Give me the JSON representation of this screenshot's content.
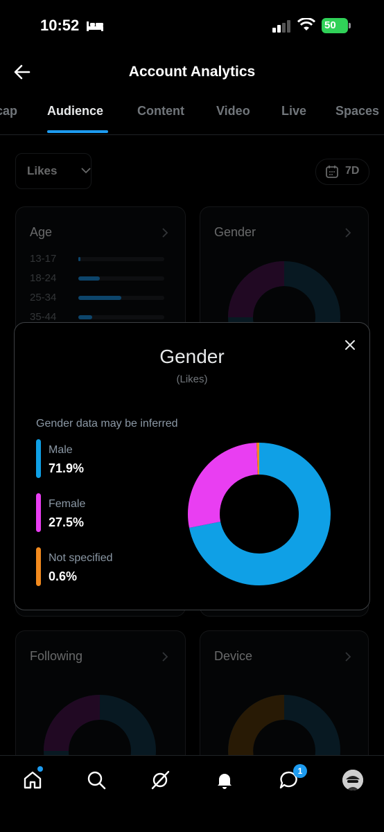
{
  "status_bar": {
    "time": "10:52",
    "battery": "50"
  },
  "header": {
    "title": "Account Analytics"
  },
  "tabs": [
    {
      "label": "cap"
    },
    {
      "label": "Audience"
    },
    {
      "label": "Content"
    },
    {
      "label": "Video"
    },
    {
      "label": "Live"
    },
    {
      "label": "Spaces"
    }
  ],
  "active_tab": "Audience",
  "filter": {
    "metric": "Likes",
    "range": "7D"
  },
  "cards": {
    "age": {
      "title": "Age",
      "rows": [
        {
          "label": "13-17",
          "share": 0.02
        },
        {
          "label": "18-24",
          "share": 0.25
        },
        {
          "label": "25-34",
          "share": 0.5
        },
        {
          "label": "35-44",
          "share": 0.16
        }
      ]
    },
    "gender": {
      "title": "Gender"
    },
    "following": {
      "title": "Following"
    },
    "device": {
      "title": "Device"
    }
  },
  "modal": {
    "title": "Gender",
    "subtitle": "(Likes)",
    "note": "Gender data may be inferred",
    "legend": [
      {
        "label": "Male",
        "value": "71.9%",
        "color": "#0fa0e6"
      },
      {
        "label": "Female",
        "value": "27.5%",
        "color": "#e93ef2"
      },
      {
        "label": "Not specified",
        "value": "0.6%",
        "color": "#f28a1e"
      }
    ]
  },
  "chart_data": {
    "type": "pie",
    "categories": [
      "Male",
      "Female",
      "Not specified"
    ],
    "values": [
      71.9,
      27.5,
      0.6
    ],
    "colors": [
      "#0fa0e6",
      "#e93ef2",
      "#f28a1e"
    ],
    "title": "Gender",
    "subtitle": "(Likes)"
  },
  "bottom_nav": {
    "items": [
      "home-icon",
      "search-icon",
      "grok-icon",
      "notifications-icon",
      "messages-icon",
      "profile-avatar"
    ],
    "messages_badge": "1"
  }
}
